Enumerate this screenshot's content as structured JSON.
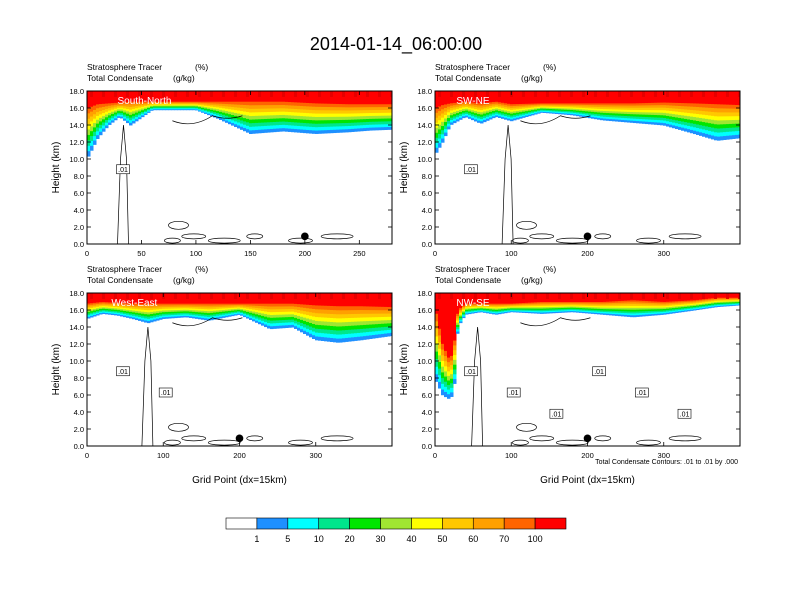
{
  "figure": {
    "title": "2014-01-14_06:00:00",
    "footnote": "Total Condensate Contours: .01 to .01 by .000"
  },
  "colorbar": {
    "colors": [
      "#ffffff",
      "#1e90ff",
      "#00ffff",
      "#00e68c",
      "#00e600",
      "#a0e632",
      "#ffff00",
      "#ffc800",
      "#ffa000",
      "#ff6400",
      "#ff0000"
    ],
    "labels": [
      "1",
      "5",
      "10",
      "20",
      "30",
      "40",
      "50",
      "60",
      "70",
      "100"
    ]
  },
  "chart_data": [
    {
      "type": "heatmap",
      "panel": "top-left",
      "title_left_1": "Stratosphere Tracer",
      "units_1": "(%)",
      "title_left_2": "Total Condensate",
      "units_2": "(g/kg)",
      "label": "South-North",
      "xlabel": "",
      "ylabel": "Height (km)",
      "xlim": [
        0,
        280
      ],
      "ylim": [
        0,
        18
      ],
      "xticks": [
        "0",
        "50",
        "100",
        "150",
        "200",
        "250"
      ],
      "xtick_values": [
        0,
        50,
        100,
        150,
        200,
        250
      ],
      "yticks": [
        "0.0",
        "2.0",
        "4.0",
        "6.0",
        "8.0",
        "10.0",
        "12.0",
        "14.0",
        "16.0",
        "18.0"
      ],
      "tracer_band": {
        "x": [
          0,
          10,
          20,
          30,
          40,
          60,
          80,
          100,
          120,
          150,
          180,
          210,
          240,
          260,
          280
        ],
        "bottom_km": [
          10.0,
          12.5,
          14.0,
          15.0,
          14.0,
          15.8,
          15.8,
          15.8,
          14.8,
          13.0,
          13.3,
          13.0,
          13.2,
          13.4,
          13.5
        ],
        "red_km": [
          16.0,
          16.5,
          16.6,
          16.7,
          16.8,
          16.8,
          16.8,
          16.8,
          16.8,
          16.8,
          16.8,
          16.6,
          16.5,
          16.5,
          16.5
        ]
      },
      "contour_labels": [
        ".01"
      ],
      "marker_x": 200
    },
    {
      "type": "heatmap",
      "panel": "top-right",
      "title_left_1": "Stratosphere Tracer",
      "units_1": "(%)",
      "title_left_2": "Total Condensate",
      "units_2": "(g/kg)",
      "label": "SW-NE",
      "xlabel": "",
      "ylabel": "Height (km)",
      "xlim": [
        0,
        400
      ],
      "ylim": [
        0,
        18
      ],
      "xticks": [
        "0",
        "100",
        "200",
        "300"
      ],
      "xtick_values": [
        0,
        100,
        200,
        300
      ],
      "yticks": [
        "0.0",
        "2.0",
        "4.0",
        "6.0",
        "8.0",
        "10.0",
        "12.0",
        "14.0",
        "16.0",
        "18.0"
      ],
      "tracer_band": {
        "x": [
          0,
          10,
          20,
          40,
          60,
          80,
          100,
          140,
          180,
          220,
          260,
          300,
          340,
          370,
          400
        ],
        "bottom_km": [
          10.5,
          12.0,
          14.0,
          15.0,
          14.2,
          15.0,
          14.5,
          15.5,
          15.2,
          14.6,
          14.3,
          14.0,
          13.0,
          12.2,
          12.5
        ],
        "red_km": [
          16.0,
          16.4,
          16.6,
          16.8,
          16.6,
          16.8,
          16.5,
          16.6,
          16.6,
          16.6,
          16.6,
          16.7,
          16.6,
          16.5,
          16.4
        ]
      },
      "contour_labels": [
        ".01"
      ],
      "marker_x": 200
    },
    {
      "type": "heatmap",
      "panel": "bottom-left",
      "title_left_1": "Stratosphere Tracer",
      "units_1": "(%)",
      "title_left_2": "Total Condensate",
      "units_2": "(g/kg)",
      "label": "West-East",
      "xlabel": "Grid Point (dx=15km)",
      "ylabel": "Height (km)",
      "xlim": [
        0,
        400
      ],
      "ylim": [
        0,
        18
      ],
      "xticks": [
        "0",
        "100",
        "200",
        "300"
      ],
      "xtick_values": [
        0,
        100,
        200,
        300
      ],
      "yticks": [
        "0.0",
        "2.0",
        "4.0",
        "6.0",
        "8.0",
        "10.0",
        "12.0",
        "14.0",
        "16.0",
        "18.0"
      ],
      "tracer_band": {
        "x": [
          0,
          20,
          40,
          60,
          80,
          100,
          130,
          160,
          200,
          240,
          270,
          300,
          330,
          360,
          400
        ],
        "bottom_km": [
          15.0,
          15.6,
          15.4,
          15.0,
          14.5,
          15.0,
          15.2,
          14.8,
          15.5,
          13.8,
          14.0,
          12.5,
          12.2,
          12.5,
          13.0
        ],
        "red_km": [
          16.8,
          17.0,
          16.9,
          16.8,
          16.8,
          16.8,
          16.8,
          16.8,
          16.8,
          16.8,
          16.8,
          16.6,
          16.5,
          16.5,
          16.4
        ]
      },
      "contour_labels": [
        ".01",
        ".01"
      ],
      "marker_x": 200
    },
    {
      "type": "heatmap",
      "panel": "bottom-right",
      "title_left_1": "Stratosphere Tracer",
      "units_1": "(%)",
      "title_left_2": "Total Condensate",
      "units_2": "(g/kg)",
      "label": "NW-SE",
      "xlabel": "Grid Point (dx=15km)",
      "ylabel": "Height (km)",
      "xlim": [
        0,
        400
      ],
      "ylim": [
        0,
        18
      ],
      "xticks": [
        "0",
        "100",
        "200",
        "300"
      ],
      "xtick_values": [
        0,
        100,
        200,
        300
      ],
      "yticks": [
        "0.0",
        "2.0",
        "4.0",
        "6.0",
        "8.0",
        "10.0",
        "12.0",
        "14.0",
        "16.0",
        "18.0"
      ],
      "tracer_band": {
        "x": [
          0,
          10,
          20,
          25,
          30,
          40,
          60,
          80,
          100,
          140,
          180,
          220,
          260,
          300,
          340,
          370,
          400
        ],
        "bottom_km": [
          8.0,
          6.0,
          5.5,
          6.5,
          14.0,
          15.5,
          15.8,
          15.5,
          15.8,
          15.6,
          15.8,
          15.5,
          15.2,
          15.5,
          16.0,
          16.4,
          16.6
        ],
        "red_km": [
          16.5,
          12.0,
          10.0,
          12.0,
          16.0,
          16.8,
          16.8,
          16.8,
          16.8,
          17.0,
          17.0,
          17.0,
          17.2,
          17.0,
          17.2,
          17.5,
          17.5
        ]
      },
      "contour_labels": [
        ".01",
        ".01",
        ".01",
        ".01",
        ".01",
        ".01"
      ],
      "marker_x": 200
    }
  ]
}
